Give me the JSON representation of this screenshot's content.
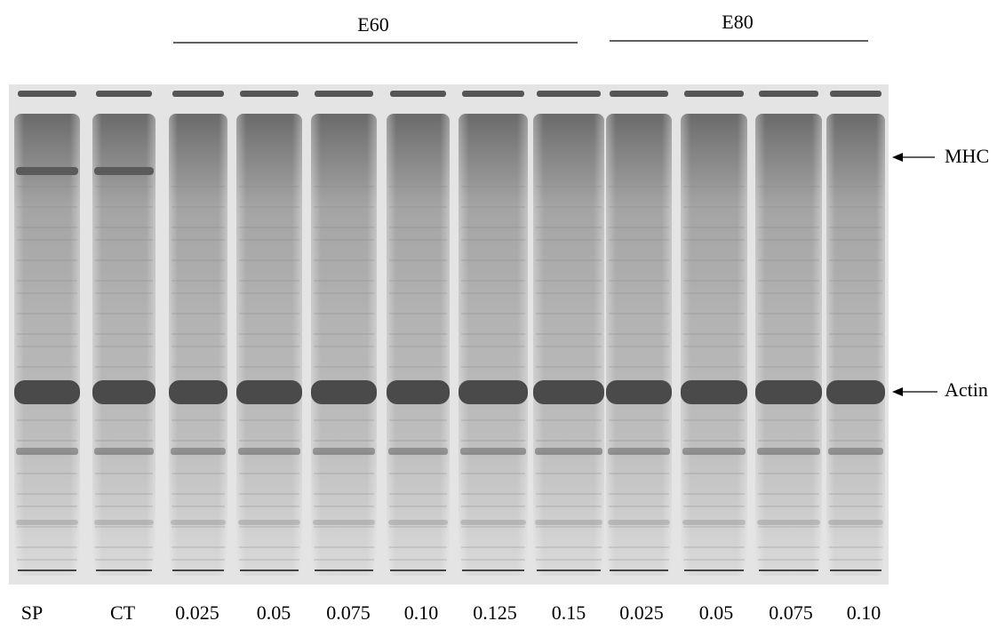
{
  "groups": [
    "E60",
    "E80"
  ],
  "lanes": [
    "SP",
    "CT",
    "0.025",
    "0.05",
    "0.075",
    "0.10",
    "0.125",
    "0.15",
    "0.025",
    "0.05",
    "0.075",
    "0.10"
  ],
  "markers": [
    "MHC",
    "Actin"
  ]
}
